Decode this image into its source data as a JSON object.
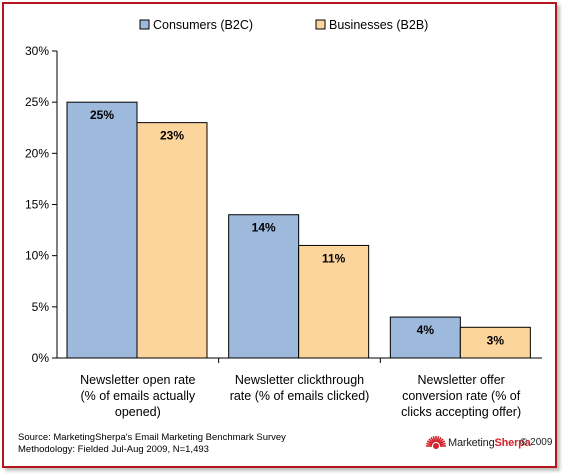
{
  "chart_data": {
    "type": "bar",
    "categories": [
      [
        "Newsletter open rate",
        "(% of emails actually",
        "opened)"
      ],
      [
        "Newsletter clickthrough",
        "rate (% of emails clicked)"
      ],
      [
        "Newsletter offer",
        "conversion rate (% of",
        "clicks accepting offer)"
      ]
    ],
    "series": [
      {
        "name": "Consumers (B2C)",
        "values": [
          25,
          14,
          4
        ],
        "labels": [
          "25%",
          "14%",
          "4%"
        ],
        "color": "#9db9dc"
      },
      {
        "name": "Businesses (B2B)",
        "values": [
          23,
          11,
          3
        ],
        "labels": [
          "23%",
          "11%",
          "3%"
        ],
        "color": "#fcd59c"
      }
    ],
    "ylim": [
      0,
      30
    ],
    "yticks": [
      "0%",
      "5%",
      "10%",
      "15%",
      "20%",
      "25%",
      "30%"
    ],
    "grid": false,
    "legend": "top",
    "frame_color": "#b5141c"
  },
  "footer": {
    "source": "Source: MarketingSherpa's Email Marketing Benchmark Survey",
    "methodology": "Methodology: Fielded Jul-Aug 2009, N=1,493"
  },
  "logo": {
    "brand_part1": "Marketing",
    "brand_part2": "Sherpa",
    "copyright": "© 2009"
  }
}
